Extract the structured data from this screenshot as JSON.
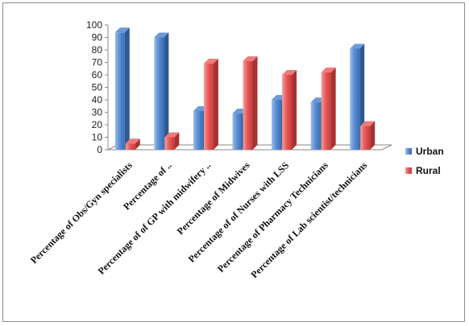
{
  "chart_data": {
    "type": "bar",
    "title": "",
    "xlabel": "",
    "ylabel": "",
    "ylim": [
      0,
      100
    ],
    "yticks": [
      0,
      10,
      20,
      30,
      40,
      50,
      60,
      70,
      80,
      90,
      100
    ],
    "grid": false,
    "legend_position": "right",
    "categories": [
      "Percentage of Obs/Gyn specialists",
      "Percentage of ..",
      "Percentage of of GP with midwifery ..",
      "Percentage of Midwives",
      "Percentage of of Nurses with LSS",
      "Percentage of Pharmacy Technicians",
      "Percentage of Lab scientist/technicians"
    ],
    "series": [
      {
        "name": "Urban",
        "color": "#4f81bd",
        "values": [
          94,
          90,
          31,
          29,
          40,
          38,
          81
        ]
      },
      {
        "name": "Rural",
        "color": "#e8555a",
        "values": [
          5,
          10,
          69,
          71,
          60,
          62,
          19
        ]
      }
    ]
  }
}
